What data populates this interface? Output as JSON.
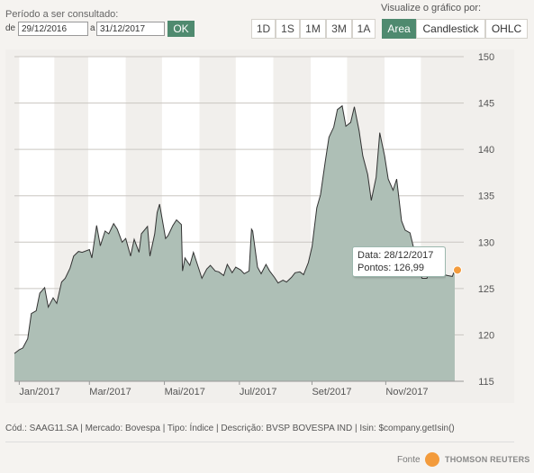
{
  "period": {
    "title": "Período a ser consultado:",
    "from_label": "de",
    "from_value": "29/12/2016",
    "to_label": "a",
    "to_value": "31/12/2017",
    "ok_label": "OK"
  },
  "visualize": {
    "title": "Visualize o gráfico por:"
  },
  "ranges": [
    "1D",
    "1S",
    "1M",
    "3M",
    "1A"
  ],
  "chart_types": [
    {
      "label": "Area",
      "active": true
    },
    {
      "label": "Candlestick",
      "active": false
    },
    {
      "label": "OHLC",
      "active": false
    }
  ],
  "footer": {
    "info": "Cód.: SAAG11.SA | Mercado: Bovespa | Tipo: Índice | Descrição: BVSP BOVESPA IND | Isin: $company.getIsin()",
    "source_label": "Fonte",
    "logo_text": "THOMSON REUTERS"
  },
  "colors": {
    "accent": "#4f8a6f",
    "area_fill": "#aebfb6",
    "line": "#333333",
    "marker": "#f39b3c"
  },
  "chart_data": {
    "type": "area",
    "ylim": [
      115,
      150
    ],
    "yticks": [
      115,
      120,
      125,
      130,
      135,
      140,
      145,
      150
    ],
    "xlim": [
      "2016-12-29",
      "2017-12-31"
    ],
    "xticks": [
      {
        "label": "Jan/2017",
        "date": "2017-01-02"
      },
      {
        "label": "Mar/2017",
        "date": "2017-03-01"
      },
      {
        "label": "Mai/2017",
        "date": "2017-05-02"
      },
      {
        "label": "Jul/2017",
        "date": "2017-07-03"
      },
      {
        "label": "Set/2017",
        "date": "2017-09-01"
      },
      {
        "label": "Nov/2017",
        "date": "2017-11-01"
      }
    ],
    "shaded_bands": [
      [
        "2017-01-02",
        "2017-01-31"
      ],
      [
        "2017-02-28",
        "2017-03-31"
      ],
      [
        "2017-04-30",
        "2017-05-31"
      ],
      [
        "2017-06-30",
        "2017-07-31"
      ],
      [
        "2017-08-31",
        "2017-09-30"
      ],
      [
        "2017-10-31",
        "2017-11-30"
      ]
    ],
    "x": [
      "2016-12-29",
      "2017-01-02",
      "2017-01-05",
      "2017-01-09",
      "2017-01-12",
      "2017-01-16",
      "2017-01-19",
      "2017-01-23",
      "2017-01-26",
      "2017-01-30",
      "2017-02-02",
      "2017-02-06",
      "2017-02-09",
      "2017-02-13",
      "2017-02-16",
      "2017-02-20",
      "2017-02-23",
      "2017-03-01",
      "2017-03-03",
      "2017-03-07",
      "2017-03-10",
      "2017-03-14",
      "2017-03-17",
      "2017-03-21",
      "2017-03-24",
      "2017-03-28",
      "2017-03-31",
      "2017-04-04",
      "2017-04-07",
      "2017-04-11",
      "2017-04-13",
      "2017-04-18",
      "2017-04-20",
      "2017-04-24",
      "2017-04-26",
      "2017-04-28",
      "2017-05-03",
      "2017-05-05",
      "2017-05-09",
      "2017-05-12",
      "2017-05-16",
      "2017-05-17",
      "2017-05-18",
      "2017-05-19",
      "2017-05-23",
      "2017-05-26",
      "2017-05-30",
      "2017-06-02",
      "2017-06-06",
      "2017-06-09",
      "2017-06-13",
      "2017-06-16",
      "2017-06-20",
      "2017-06-23",
      "2017-06-27",
      "2017-06-30",
      "2017-07-04",
      "2017-07-07",
      "2017-07-11",
      "2017-07-13",
      "2017-07-14",
      "2017-07-18",
      "2017-07-21",
      "2017-07-25",
      "2017-07-28",
      "2017-08-01",
      "2017-08-04",
      "2017-08-08",
      "2017-08-11",
      "2017-08-15",
      "2017-08-18",
      "2017-08-22",
      "2017-08-25",
      "2017-08-29",
      "2017-09-01",
      "2017-09-05",
      "2017-09-08",
      "2017-09-12",
      "2017-09-15",
      "2017-09-19",
      "2017-09-22",
      "2017-09-26",
      "2017-09-29",
      "2017-10-03",
      "2017-10-06",
      "2017-10-10",
      "2017-10-13",
      "2017-10-17",
      "2017-10-20",
      "2017-10-24",
      "2017-10-27",
      "2017-10-31",
      "2017-11-03",
      "2017-11-07",
      "2017-11-10",
      "2017-11-14",
      "2017-11-17",
      "2017-11-21",
      "2017-11-24",
      "2017-11-28",
      "2017-12-01",
      "2017-12-05",
      "2017-12-08",
      "2017-12-12",
      "2017-12-15",
      "2017-12-19",
      "2017-12-22",
      "2017-12-26",
      "2017-12-28"
    ],
    "values": [
      118.0,
      118.4,
      118.6,
      119.6,
      122.3,
      122.6,
      124.5,
      125.1,
      123.0,
      124.0,
      123.4,
      125.7,
      126.1,
      127.2,
      128.5,
      129.0,
      128.9,
      129.2,
      128.3,
      131.8,
      129.6,
      131.2,
      130.9,
      132.0,
      131.4,
      130.0,
      130.4,
      128.5,
      130.3,
      128.9,
      130.9,
      131.7,
      128.5,
      130.9,
      133.2,
      134.1,
      130.4,
      130.7,
      131.8,
      132.4,
      131.9,
      126.9,
      127.6,
      128.3,
      127.5,
      128.9,
      127.3,
      126.1,
      127.1,
      127.5,
      126.9,
      126.8,
      126.4,
      127.6,
      126.7,
      127.3,
      127.0,
      126.6,
      126.9,
      131.4,
      131.2,
      127.3,
      126.6,
      127.6,
      126.9,
      126.2,
      125.6,
      125.9,
      125.7,
      126.2,
      126.7,
      126.8,
      126.5,
      127.8,
      129.5,
      133.7,
      135.1,
      138.7,
      141.3,
      142.4,
      144.3,
      144.7,
      142.5,
      142.9,
      144.6,
      142.0,
      139.3,
      137.3,
      134.5,
      137.0,
      141.8,
      139.3,
      136.8,
      135.6,
      136.8,
      132.3,
      131.3,
      131.0,
      129.4,
      127.2,
      126.1,
      126.1,
      127.8,
      126.9,
      127.1,
      126.5,
      126.4,
      126.3,
      126.99
    ],
    "tooltip": {
      "date_label": "Data: 28/12/2017",
      "value_label": "Pontos: 126,99"
    }
  }
}
